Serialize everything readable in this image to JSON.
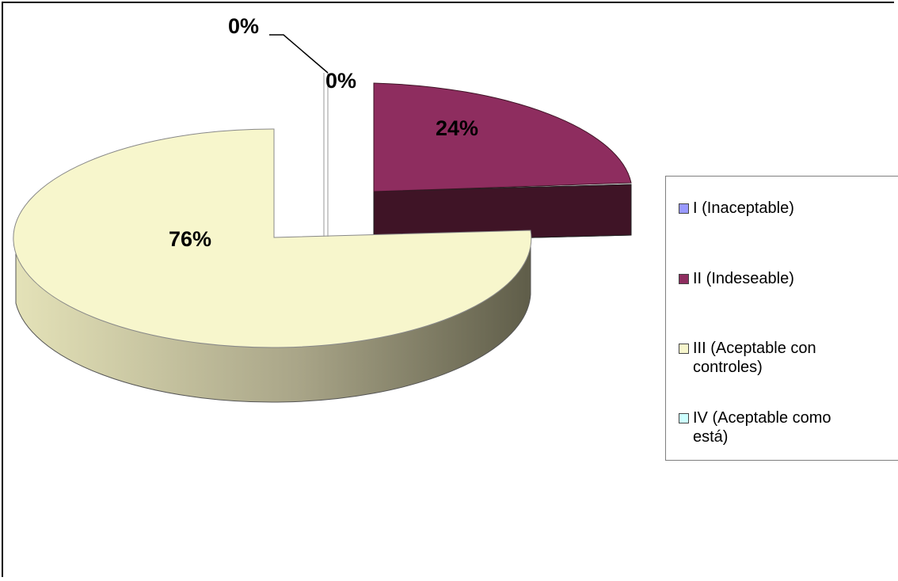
{
  "chart_data": {
    "type": "pie",
    "three_d": true,
    "exploded": true,
    "title": "",
    "categories": [
      "I (Inaceptable)",
      "II (Indeseable)",
      "III (Aceptable con controles)",
      "IV (Aceptable como está)"
    ],
    "values": [
      0,
      24,
      76,
      0
    ],
    "labels": [
      "0%",
      "24%",
      "76%",
      "0%"
    ],
    "legend_placement": "right",
    "colors": {
      "I": "#9999ff",
      "II": "#8e2d5f",
      "II_side": "#3f1426",
      "III": "#f7f6cc",
      "III_side": "#a9a588",
      "IV": "#ccffff"
    }
  },
  "legend": {
    "items": [
      {
        "line1": "I (Inaceptable)",
        "line2": ""
      },
      {
        "line1": "II (Indeseable)",
        "line2": ""
      },
      {
        "line1": "III (Aceptable con",
        "line2": "controles)"
      },
      {
        "line1": "IV (Aceptable como",
        "line2": "está)"
      }
    ]
  }
}
